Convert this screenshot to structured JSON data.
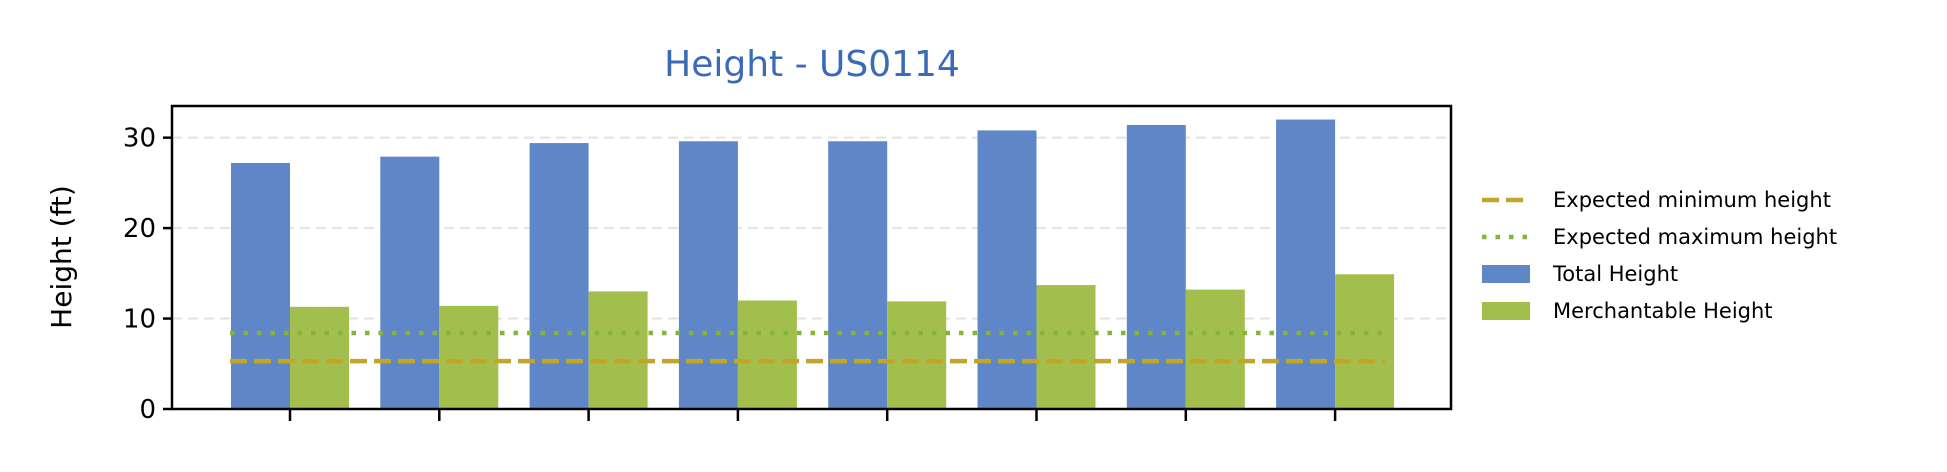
{
  "chart_data": {
    "type": "bar",
    "title": "Height - US0114",
    "title_color": "#3b6bb8",
    "xlabel": "",
    "ylabel": "Height (ft)",
    "ylim": [
      0,
      33.5
    ],
    "yticks": [
      0,
      10,
      20,
      30
    ],
    "grid": "horizontal dashed",
    "legend_position": "right",
    "categories": [
      "",
      "",
      "",
      "",
      "",
      "",
      "",
      ""
    ],
    "series": [
      {
        "name": "Total Height",
        "color": "#5f87c8",
        "values": [
          27.2,
          27.9,
          29.4,
          29.6,
          29.6,
          30.8,
          31.4,
          32.0
        ]
      },
      {
        "name": "Merchantable Height",
        "color": "#a2bf4e",
        "values": [
          11.3,
          11.4,
          13.0,
          12.0,
          11.9,
          13.7,
          13.2,
          14.9
        ]
      }
    ],
    "reference_lines": [
      {
        "name": "Expected minimum height",
        "value": 5.3,
        "style": "dashed",
        "color": "#c2a62a"
      },
      {
        "name": "Expected maximum height",
        "value": 8.4,
        "style": "dotted",
        "color": "#86b33a"
      }
    ]
  }
}
